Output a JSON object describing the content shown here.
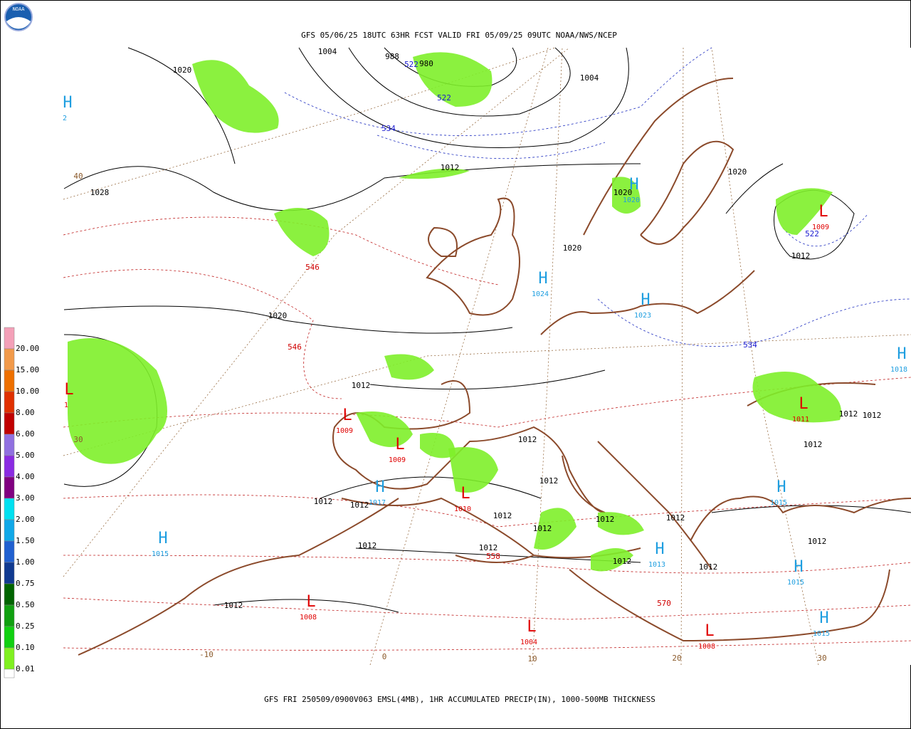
{
  "header": {
    "title": "GFS 05/06/25 18UTC 63HR FCST VALID FRI 05/09/25 09UTC NOAA/NWS/NCEP",
    "logo": "NOAA"
  },
  "footer": "GFS FRI 250509/0900V063 EMSL(4MB), 1HR ACCUMULATED PRECIP(IN), 1000-500MB THICKNESS",
  "legend": [
    {
      "label": "20.00",
      "color": "#f4a0b8"
    },
    {
      "label": "15.00",
      "color": "#f29a4a"
    },
    {
      "label": "10.00",
      "color": "#ee7000"
    },
    {
      "label": "8.00",
      "color": "#e03000"
    },
    {
      "label": "6.00",
      "color": "#c00000"
    },
    {
      "label": "5.00",
      "color": "#9070e0"
    },
    {
      "label": "4.00",
      "color": "#8a2be2"
    },
    {
      "label": "3.00",
      "color": "#800080"
    },
    {
      "label": "2.00",
      "color": "#00e0f0"
    },
    {
      "label": "1.50",
      "color": "#10a8e8"
    },
    {
      "label": "1.00",
      "color": "#2060d0"
    },
    {
      "label": "0.75",
      "color": "#103a90"
    },
    {
      "label": "0.50",
      "color": "#006400"
    },
    {
      "label": "0.25",
      "color": "#10a010"
    },
    {
      "label": "0.10",
      "color": "#10d010"
    },
    {
      "label": "0.01",
      "color": "#80f020"
    }
  ],
  "isobar_labels": [
    "1004",
    "988",
    "980",
    "1020",
    "1004",
    "1012",
    "1028",
    "1020",
    "1020",
    "1020",
    "1020",
    "1012",
    "1012",
    "1012",
    "1012",
    "1012",
    "1012",
    "1012",
    "1012",
    "1012",
    "1012",
    "1012",
    "1012",
    "1012",
    "1012",
    "1012",
    "1012",
    "1012",
    "1012",
    "1012"
  ],
  "thickness_labels": {
    "blue": [
      "522",
      "522",
      "534",
      "522",
      "534"
    ],
    "red": [
      "546",
      "546",
      "558",
      "570"
    ]
  },
  "grid_labels": [
    "40",
    "30",
    "-10",
    "0",
    "10",
    "20",
    "30"
  ],
  "centers": [
    {
      "kind": "H",
      "value": "1024"
    },
    {
      "kind": "H",
      "value": "1020"
    },
    {
      "kind": "H",
      "value": "1023"
    },
    {
      "kind": "H",
      "value": "1018"
    },
    {
      "kind": "L",
      "value": "1009"
    },
    {
      "kind": "L",
      "value": "1011"
    },
    {
      "kind": "L",
      "value": "1009"
    },
    {
      "kind": "L",
      "value": "1009"
    },
    {
      "kind": "H",
      "value": "1017"
    },
    {
      "kind": "L",
      "value": "1010"
    },
    {
      "kind": "H",
      "value": "1015"
    },
    {
      "kind": "H",
      "value": "1013"
    },
    {
      "kind": "H",
      "value": "1015"
    },
    {
      "kind": "H",
      "value": "1015"
    },
    {
      "kind": "H",
      "value": "1015"
    },
    {
      "kind": "L",
      "value": "1008"
    },
    {
      "kind": "L",
      "value": "1004"
    },
    {
      "kind": "L",
      "value": "1008"
    },
    {
      "kind": "H",
      "value": "2"
    },
    {
      "kind": "L",
      "value": "1"
    }
  ]
}
